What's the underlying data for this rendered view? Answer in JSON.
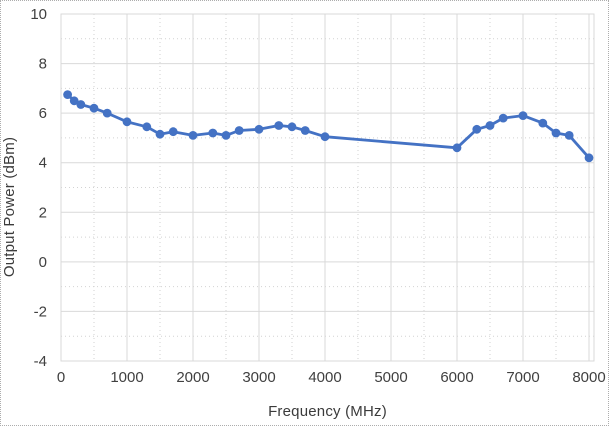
{
  "figure": {
    "kind": "excel-style-line-chart",
    "background": "#FFFFFF"
  },
  "chart_data": {
    "type": "line",
    "title": "",
    "xlabel": "Frequency (MHz)",
    "ylabel": "Output Power (dBm)",
    "series": [
      {
        "name": "Output Power",
        "x": [
          100,
          200,
          300,
          500,
          700,
          1000,
          1300,
          1500,
          1700,
          2000,
          2300,
          2500,
          2700,
          3000,
          3300,
          3500,
          3700,
          4000,
          6000,
          6300,
          6500,
          6700,
          7000,
          7300,
          7500,
          7700,
          8000
        ],
        "y": [
          6.75,
          6.5,
          6.35,
          6.2,
          6.0,
          5.65,
          5.45,
          5.15,
          5.25,
          5.1,
          5.2,
          5.1,
          5.3,
          5.35,
          5.5,
          5.45,
          5.3,
          5.05,
          4.6,
          5.35,
          5.5,
          5.8,
          5.9,
          5.6,
          5.2,
          5.1,
          4.2
        ]
      }
    ],
    "xlim": [
      0,
      8000
    ],
    "ylim": [
      -4,
      10
    ],
    "x_ticks": [
      0,
      1000,
      2000,
      3000,
      4000,
      5000,
      6000,
      7000,
      8000
    ],
    "y_ticks": [
      -4,
      -2,
      0,
      2,
      4,
      6,
      8,
      10
    ],
    "x_minor_step": 500,
    "y_minor_step": 1,
    "grid": "major+minor",
    "legend_position": "none",
    "marker": "circle",
    "colors": {
      "series": "#4472C4",
      "grid_major": "#D9D9D9",
      "grid_minor": "#D2D2D2",
      "plot_border": "#D9D9D9",
      "axis_text": "#404040",
      "figure_border": "#ADADAD",
      "background": "#FFFFFF"
    }
  }
}
